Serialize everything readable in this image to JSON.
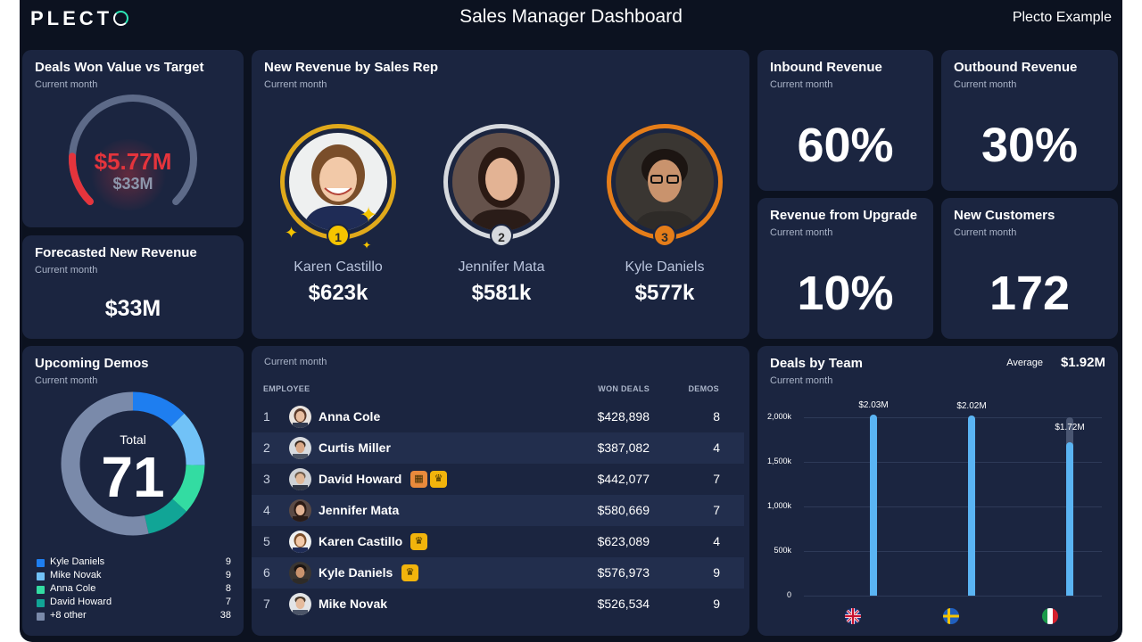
{
  "header": {
    "logo_text": "PLECT",
    "title": "Sales Manager Dashboard",
    "company": "Plecto Example"
  },
  "colors": {
    "background": "#0c1220",
    "card": "#1b2540",
    "accent_red": "#e5343c",
    "gold": "#e0a91b",
    "silver": "#d6d9de",
    "bronze": "#e57d19",
    "bar_blue": "#5ab4f3"
  },
  "deals_won": {
    "title": "Deals Won Value vs Target",
    "subtitle": "Current month",
    "value": "$5.77M",
    "target": "$33M",
    "progress_fraction": 0.175
  },
  "forecast": {
    "title": "Forecasted New Revenue",
    "subtitle": "Current month",
    "value": "$33M"
  },
  "podium": {
    "title": "New Revenue by Sales Rep",
    "subtitle": "Current month",
    "reps": [
      {
        "rank": "1",
        "name": "Karen Castillo",
        "value": "$623k"
      },
      {
        "rank": "2",
        "name": "Jennifer Mata",
        "value": "$581k"
      },
      {
        "rank": "3",
        "name": "Kyle Daniels",
        "value": "$577k"
      }
    ]
  },
  "inbound": {
    "title": "Inbound Revenue",
    "subtitle": "Current month",
    "value": "60%"
  },
  "outbound": {
    "title": "Outbound Revenue",
    "subtitle": "Current month",
    "value": "30%"
  },
  "upgrade": {
    "title": "Revenue from Upgrade",
    "subtitle": "Current month",
    "value": "10%"
  },
  "new_customers": {
    "title": "New Customers",
    "subtitle": "Current month",
    "value": "172"
  },
  "demos": {
    "title": "Upcoming Demos",
    "subtitle": "Current month",
    "total_label": "Total",
    "total": "71",
    "legend": [
      {
        "name": "Kyle Daniels",
        "value": 9,
        "color": "#1e7ef0"
      },
      {
        "name": "Mike Novak",
        "value": 9,
        "color": "#71c2f7"
      },
      {
        "name": "Anna Cole",
        "value": 8,
        "color": "#33dca2"
      },
      {
        "name": "David Howard",
        "value": 7,
        "color": "#11a596"
      },
      {
        "name": "+8 other",
        "value": 38,
        "color": "#7a8aaa"
      }
    ]
  },
  "leaderboard": {
    "subtitle": "Current month",
    "headers": {
      "employee": "EMPLOYEE",
      "won": "WON DEALS",
      "demos": "DEMOS"
    },
    "rows": [
      {
        "rank": "1",
        "name": "Anna Cole",
        "won": "$428,898",
        "demos": "8"
      },
      {
        "rank": "2",
        "name": "Curtis Miller",
        "won": "$387,082",
        "demos": "4"
      },
      {
        "rank": "3",
        "name": "David Howard",
        "won": "$442,077",
        "demos": "7"
      },
      {
        "rank": "4",
        "name": "Jennifer Mata",
        "won": "$580,669",
        "demos": "7"
      },
      {
        "rank": "5",
        "name": "Karen Castillo",
        "won": "$623,089",
        "demos": "4"
      },
      {
        "rank": "6",
        "name": "Kyle Daniels",
        "won": "$576,973",
        "demos": "9"
      },
      {
        "rank": "7",
        "name": "Mike Novak",
        "won": "$526,534",
        "demos": "9"
      }
    ]
  },
  "teams": {
    "title": "Deals by Team",
    "subtitle": "Current month",
    "average_label": "Average",
    "average": "$1.92M"
  },
  "chart_data": {
    "type": "bar",
    "title": "Deals by Team",
    "categories": [
      "United Kingdom",
      "Sweden",
      "Italy"
    ],
    "values": [
      2030000,
      2020000,
      1720000
    ],
    "targets": [
      2000000,
      2000000,
      2000000
    ],
    "data_labels": [
      "$2.03M",
      "$2.02M",
      "$1.72M"
    ],
    "y_ticks": [
      "0",
      "500k",
      "1,000k",
      "1,500k",
      "2,000k"
    ],
    "y_tick_values": [
      0,
      500000,
      1000000,
      1500000,
      2000000
    ],
    "ylim": [
      0,
      2000000
    ]
  }
}
